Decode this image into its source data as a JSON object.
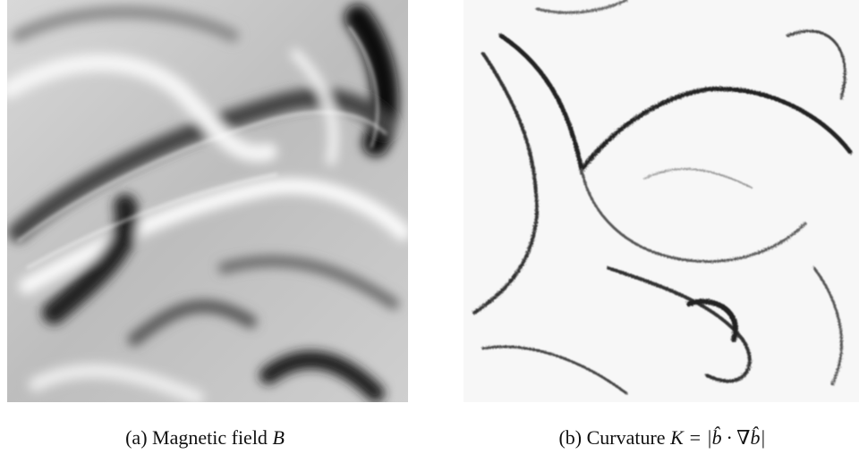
{
  "figure": {
    "panels": [
      {
        "label": "(a)",
        "text": "Magnetic field",
        "math": "B"
      },
      {
        "label": "(b)",
        "text": "Curvature",
        "math": "K = |b̂ · ∇b̂|"
      }
    ]
  }
}
